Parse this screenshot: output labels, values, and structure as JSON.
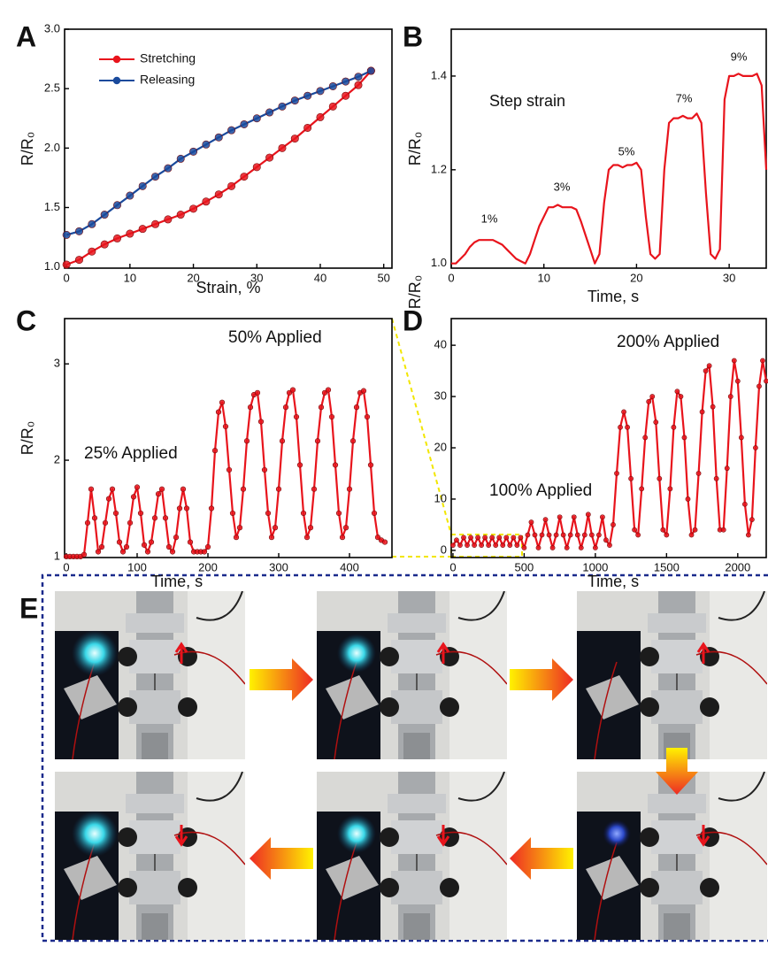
{
  "chart_data": [
    {
      "type": "line",
      "panel_label": "A",
      "xlabel": "Strain, %",
      "ylabel": "R/R₀",
      "markers": true,
      "legend": "upper left",
      "xlim": [
        -0.3,
        51.3
      ],
      "ylim": [
        0.99,
        3
      ],
      "xticks": [
        0,
        10,
        20,
        30,
        40,
        50
      ],
      "yticks": [
        {
          "value": 1,
          "label": "1.0"
        },
        1.5,
        {
          "value": 2,
          "label": "2.0"
        },
        2.5,
        {
          "value": 3,
          "label": "3.0"
        }
      ],
      "x": [
        0,
        2,
        4,
        6,
        8,
        10,
        12,
        14,
        16,
        18,
        20,
        22,
        24,
        26,
        28,
        30,
        32,
        34,
        36,
        38,
        40,
        42,
        44,
        46,
        48
      ],
      "series": [
        {
          "name": "Stretching",
          "color": "#e8141c",
          "values": [
            1.02,
            1.06,
            1.13,
            1.19,
            1.24,
            1.28,
            1.32,
            1.36,
            1.4,
            1.44,
            1.49,
            1.55,
            1.61,
            1.68,
            1.76,
            1.84,
            1.92,
            2,
            2.08,
            2.17,
            2.26,
            2.35,
            2.44,
            2.53,
            2.65
          ]
        },
        {
          "name": "Releasing",
          "color": "#1a4a9c",
          "values": [
            1.27,
            1.3,
            1.36,
            1.44,
            1.52,
            1.6,
            1.68,
            1.76,
            1.83,
            1.91,
            1.97,
            2.03,
            2.09,
            2.15,
            2.2,
            2.25,
            2.3,
            2.35,
            2.4,
            2.44,
            2.48,
            2.52,
            2.56,
            2.6,
            2.65
          ]
        }
      ]
    },
    {
      "type": "line",
      "panel_label": "B",
      "xlabel": "Time, s",
      "ylabel": "R/R₀",
      "markers": false,
      "annotations": [
        "Step strain",
        "1%",
        "3%",
        "5%",
        "7%",
        "9%"
      ],
      "xlim": [
        0,
        34
      ],
      "ylim": [
        0.99,
        1.5
      ],
      "xticks": [
        0,
        10,
        20,
        30
      ],
      "yticks": [
        {
          "value": 1,
          "label": "1.0"
        },
        1.2,
        1.4
      ],
      "x": [
        0,
        0.5,
        1,
        1.5,
        2,
        2.5,
        3,
        3.5,
        4,
        4.5,
        5,
        5.5,
        6,
        6.5,
        7,
        7.5,
        8,
        8.5,
        9,
        9.5,
        10,
        10.5,
        11,
        11.5,
        12,
        12.5,
        13,
        13.5,
        14,
        14.5,
        15,
        15.5,
        16,
        16.5,
        17,
        17.5,
        18,
        18.5,
        19,
        19.5,
        20,
        20.5,
        21,
        21.5,
        22,
        22.5,
        23,
        23.5,
        24,
        24.5,
        25,
        25.5,
        26,
        26.5,
        27,
        27.5,
        28,
        28.5,
        29,
        29.5,
        30,
        30.5,
        31,
        31.5,
        32,
        32.5,
        33,
        33.5,
        34
      ],
      "series": [
        {
          "color": "#e8141c",
          "values": [
            1,
            1,
            1.01,
            1.02,
            1.035,
            1.045,
            1.05,
            1.05,
            1.05,
            1.05,
            1.045,
            1.04,
            1.03,
            1.02,
            1.01,
            1.005,
            1,
            1.02,
            1.05,
            1.08,
            1.1,
            1.12,
            1.12,
            1.125,
            1.12,
            1.12,
            1.12,
            1.115,
            1.09,
            1.06,
            1.03,
            1,
            1.02,
            1.13,
            1.2,
            1.21,
            1.21,
            1.205,
            1.21,
            1.21,
            1.215,
            1.2,
            1.1,
            1.02,
            1.01,
            1.02,
            1.2,
            1.3,
            1.31,
            1.31,
            1.315,
            1.31,
            1.31,
            1.32,
            1.3,
            1.15,
            1.02,
            1.01,
            1.03,
            1.35,
            1.4,
            1.4,
            1.405,
            1.4,
            1.4,
            1.4,
            1.405,
            1.38,
            1.2
          ]
        }
      ]
    },
    {
      "type": "line",
      "panel_label": "C",
      "xlabel": "Time, s",
      "ylabel": "R/R₀",
      "markers": true,
      "annotations": [
        "25% Applied",
        "50% Applied"
      ],
      "xlim": [
        -2.5,
        460
      ],
      "ylim": [
        0.99,
        3.47
      ],
      "xticks": [
        0,
        100,
        200,
        300,
        400
      ],
      "yticks": [
        1,
        2,
        3
      ],
      "x": [
        0,
        5,
        10,
        15,
        20,
        25,
        30,
        35,
        40,
        45,
        50,
        55,
        60,
        65,
        70,
        75,
        80,
        85,
        90,
        95,
        100,
        105,
        110,
        115,
        120,
        125,
        130,
        135,
        140,
        145,
        150,
        155,
        160,
        165,
        170,
        175,
        180,
        185,
        190,
        195,
        200,
        205,
        210,
        215,
        220,
        225,
        230,
        235,
        240,
        245,
        250,
        255,
        260,
        265,
        270,
        275,
        280,
        285,
        290,
        295,
        300,
        305,
        310,
        315,
        320,
        325,
        330,
        335,
        340,
        345,
        350,
        355,
        360,
        365,
        370,
        375,
        380,
        385,
        390,
        395,
        400,
        405,
        410,
        415,
        420,
        425,
        430,
        435,
        440,
        445,
        450
      ],
      "series": [
        {
          "color": "#e8141c",
          "values": [
            1,
            1,
            1,
            1,
            1,
            1.02,
            1.35,
            1.7,
            1.4,
            1.05,
            1.1,
            1.35,
            1.6,
            1.7,
            1.45,
            1.15,
            1.05,
            1.1,
            1.35,
            1.62,
            1.72,
            1.45,
            1.12,
            1.05,
            1.15,
            1.4,
            1.65,
            1.7,
            1.4,
            1.1,
            1.05,
            1.2,
            1.5,
            1.7,
            1.5,
            1.15,
            1.05,
            1.05,
            1.05,
            1.05,
            1.1,
            1.5,
            2.1,
            2.5,
            2.6,
            2.35,
            1.9,
            1.45,
            1.2,
            1.3,
            1.7,
            2.2,
            2.55,
            2.68,
            2.7,
            2.4,
            1.9,
            1.45,
            1.2,
            1.3,
            1.7,
            2.2,
            2.55,
            2.7,
            2.73,
            2.45,
            1.95,
            1.45,
            1.2,
            1.3,
            1.7,
            2.2,
            2.55,
            2.7,
            2.73,
            2.45,
            1.95,
            1.45,
            1.2,
            1.3,
            1.7,
            2.2,
            2.55,
            2.7,
            2.72,
            2.45,
            1.95,
            1.45,
            1.2,
            1.17,
            1.15
          ]
        }
      ]
    },
    {
      "type": "line",
      "panel_label": "D",
      "xlabel": "Time, s",
      "ylabel": "R/R₀",
      "markers": true,
      "annotations": [
        "100% Applied",
        "200% Applied"
      ],
      "xlim": [
        -12,
        2200
      ],
      "ylim": [
        -1.4,
        45.2
      ],
      "xticks": [
        0,
        500,
        1000,
        1500,
        2000
      ],
      "yticks": [
        0,
        10,
        20,
        30,
        40
      ],
      "x": [
        0,
        25,
        50,
        75,
        100,
        125,
        150,
        175,
        200,
        225,
        250,
        275,
        300,
        325,
        350,
        375,
        400,
        425,
        450,
        475,
        500,
        525,
        550,
        575,
        600,
        625,
        650,
        675,
        700,
        725,
        750,
        775,
        800,
        825,
        850,
        875,
        900,
        925,
        950,
        975,
        1000,
        1025,
        1050,
        1075,
        1100,
        1125,
        1150,
        1175,
        1200,
        1225,
        1250,
        1275,
        1300,
        1325,
        1350,
        1375,
        1400,
        1425,
        1450,
        1475,
        1500,
        1525,
        1550,
        1575,
        1600,
        1625,
        1650,
        1675,
        1700,
        1725,
        1750,
        1775,
        1800,
        1825,
        1850,
        1875,
        1900,
        1925,
        1950,
        1975,
        2000,
        2025,
        2050,
        2075,
        2100,
        2125,
        2150,
        2175,
        2200
      ],
      "series": [
        {
          "color": "#e8141c",
          "values": [
            1,
            2,
            1,
            2.5,
            1,
            2.5,
            1,
            2.5,
            1,
            2.5,
            1,
            2.5,
            1,
            2.5,
            1,
            2.5,
            1,
            2.5,
            1,
            2.5,
            0.5,
            3,
            5.5,
            3,
            0.5,
            3,
            6,
            3,
            0.5,
            3,
            6.5,
            3,
            0.5,
            3,
            6.5,
            3,
            0.5,
            3,
            7,
            3,
            0.5,
            3,
            6.5,
            2,
            1,
            5,
            15,
            24,
            27,
            24,
            14,
            4,
            3,
            12,
            22,
            29,
            30,
            25,
            14,
            4,
            3,
            12,
            24,
            31,
            30,
            22,
            10,
            3,
            4,
            15,
            27,
            35,
            36,
            28,
            14,
            4,
            4,
            16,
            30,
            37,
            33,
            22,
            9,
            3,
            6,
            20,
            32,
            37,
            33
          ]
        }
      ]
    }
  ],
  "panel_e": {
    "label": "E"
  }
}
